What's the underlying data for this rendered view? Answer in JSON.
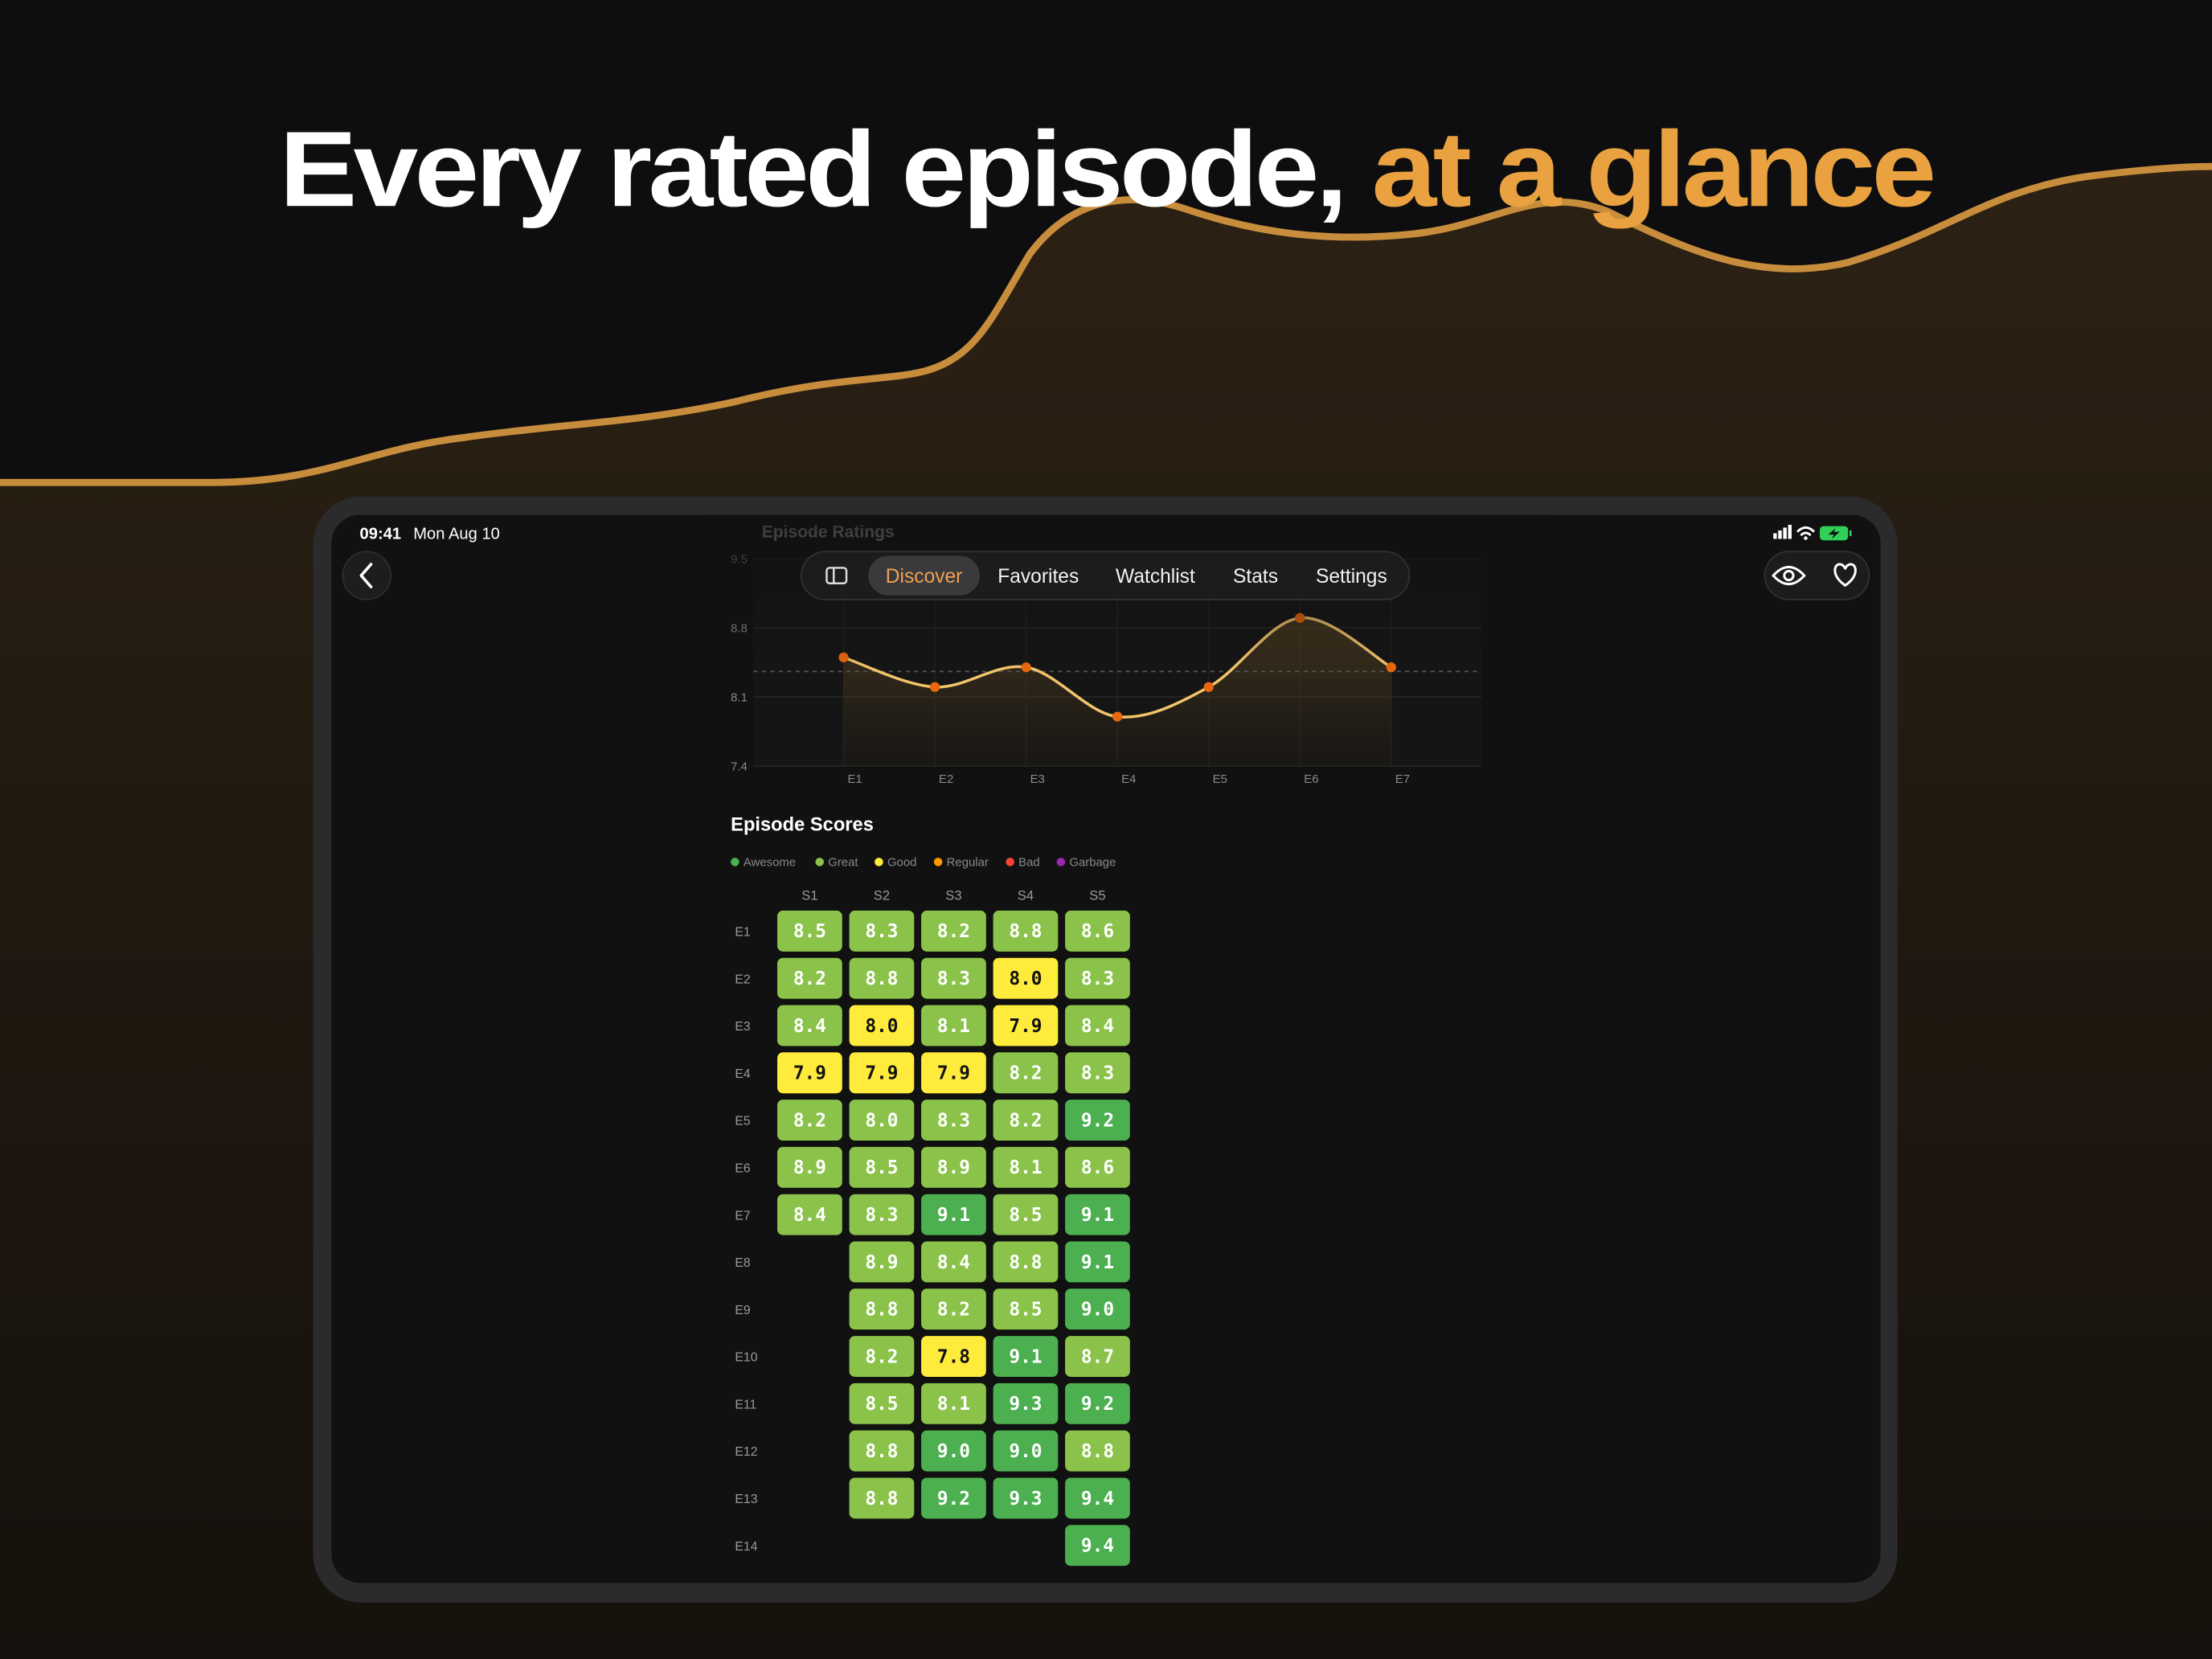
{
  "header": {
    "title": "Every rated episode,",
    "highlight": "at a glance"
  },
  "status_bar": {
    "time": "09:41",
    "date": "Mon Aug 10"
  },
  "nav": {
    "tabs": [
      "Discover",
      "Favorites",
      "Watchlist",
      "Stats",
      "Settings"
    ],
    "selected": 0
  },
  "chart_data": [
    {
      "type": "line",
      "title": "Episode Ratings",
      "categories": [
        "E1",
        "E2",
        "E3",
        "E4",
        "E5",
        "E6",
        "E7"
      ],
      "values": [
        8.5,
        8.2,
        8.4,
        7.9,
        8.2,
        8.9,
        8.4
      ],
      "color": "#f2c46a",
      "marker_color": "#e8670f",
      "ylim": [
        7.4,
        9.5
      ],
      "yticks": [
        7.4,
        8.1,
        8.8,
        9.5
      ],
      "grid": true
    },
    {
      "type": "heatmap",
      "title": "Episode Scores",
      "legend": [
        {
          "name": "Awesome",
          "color": "#4caf50"
        },
        {
          "name": "Great",
          "color": "#8bc34a"
        },
        {
          "name": "Good",
          "color": "#ffeb3b"
        },
        {
          "name": "Regular",
          "color": "#ff9800"
        },
        {
          "name": "Bad",
          "color": "#f44336"
        },
        {
          "name": "Garbage",
          "color": "#9c27b0"
        }
      ],
      "categories": [
        "E1",
        "E2",
        "E3",
        "E4",
        "E5",
        "E6",
        "E7",
        "E8",
        "E9",
        "E10",
        "E11",
        "E12",
        "E13",
        "E14"
      ],
      "series": [
        {
          "name": "S1",
          "values": [
            8.5,
            8.2,
            8.4,
            7.9,
            8.2,
            8.9,
            8.4,
            null,
            null,
            null,
            null,
            null,
            null,
            null
          ],
          "value_labels": [
            "8.5",
            "8.2",
            "8.4",
            "7.9",
            "8.2",
            "8.9",
            "8.4",
            null,
            null,
            null,
            null,
            null,
            null,
            null
          ],
          "colors": [
            "#8bc34a",
            "#8bc34a",
            "#8bc34a",
            "#ffeb3b",
            "#8bc34a",
            "#8bc34a",
            "#8bc34a",
            null,
            null,
            null,
            null,
            null,
            null,
            null
          ]
        },
        {
          "name": "S2",
          "values": [
            8.3,
            8.8,
            8.0,
            7.9,
            8.0,
            8.5,
            8.3,
            8.9,
            8.8,
            8.2,
            8.5,
            8.8,
            8.8,
            null
          ],
          "value_labels": [
            "8.3",
            "8.8",
            "8.0",
            "7.9",
            "8.0",
            "8.5",
            "8.3",
            "8.9",
            "8.8",
            "8.2",
            "8.5",
            "8.8",
            "8.8",
            null
          ],
          "colors": [
            "#8bc34a",
            "#8bc34a",
            "#ffeb3b",
            "#ffeb3b",
            "#8bc34a",
            "#8bc34a",
            "#8bc34a",
            "#8bc34a",
            "#8bc34a",
            "#8bc34a",
            "#8bc34a",
            "#8bc34a",
            "#8bc34a",
            null
          ]
        },
        {
          "name": "S3",
          "values": [
            8.2,
            8.3,
            8.1,
            7.9,
            8.3,
            8.9,
            9.1,
            8.4,
            8.2,
            7.8,
            8.1,
            9.0,
            9.2,
            null
          ],
          "value_labels": [
            "8.2",
            "8.3",
            "8.1",
            "7.9",
            "8.3",
            "8.9",
            "9.1",
            "8.4",
            "8.2",
            "7.8",
            "8.1",
            "9.0",
            "9.2",
            null
          ],
          "colors": [
            "#8bc34a",
            "#8bc34a",
            "#8bc34a",
            "#ffeb3b",
            "#8bc34a",
            "#8bc34a",
            "#4caf50",
            "#8bc34a",
            "#8bc34a",
            "#ffeb3b",
            "#8bc34a",
            "#4caf50",
            "#4caf50",
            null
          ]
        },
        {
          "name": "S4",
          "values": [
            8.8,
            8.0,
            7.9,
            8.2,
            8.2,
            8.1,
            8.5,
            8.8,
            8.5,
            9.1,
            9.3,
            9.0,
            9.3,
            null
          ],
          "value_labels": [
            "8.8",
            "8.0",
            "7.9",
            "8.2",
            "8.2",
            "8.1",
            "8.5",
            "8.8",
            "8.5",
            "9.1",
            "9.3",
            "9.0",
            "9.3",
            null
          ],
          "colors": [
            "#8bc34a",
            "#ffeb3b",
            "#ffeb3b",
            "#8bc34a",
            "#8bc34a",
            "#8bc34a",
            "#8bc34a",
            "#8bc34a",
            "#8bc34a",
            "#4caf50",
            "#4caf50",
            "#4caf50",
            "#4caf50",
            null
          ]
        },
        {
          "name": "S5",
          "values": [
            8.6,
            8.3,
            8.4,
            8.3,
            9.2,
            8.6,
            9.1,
            9.1,
            9.0,
            8.7,
            9.2,
            8.8,
            9.4,
            9.4
          ],
          "value_labels": [
            "8.6",
            "8.3",
            "8.4",
            "8.3",
            "9.2",
            "8.6",
            "9.1",
            "9.1",
            "9.0",
            "8.7",
            "9.2",
            "8.8",
            "9.4",
            "9.4"
          ],
          "colors": [
            "#8bc34a",
            "#8bc34a",
            "#8bc34a",
            "#8bc34a",
            "#4caf50",
            "#8bc34a",
            "#4caf50",
            "#4caf50",
            "#4caf50",
            "#8bc34a",
            "#4caf50",
            "#8bc34a",
            "#4caf50",
            "#4caf50"
          ]
        }
      ]
    }
  ]
}
